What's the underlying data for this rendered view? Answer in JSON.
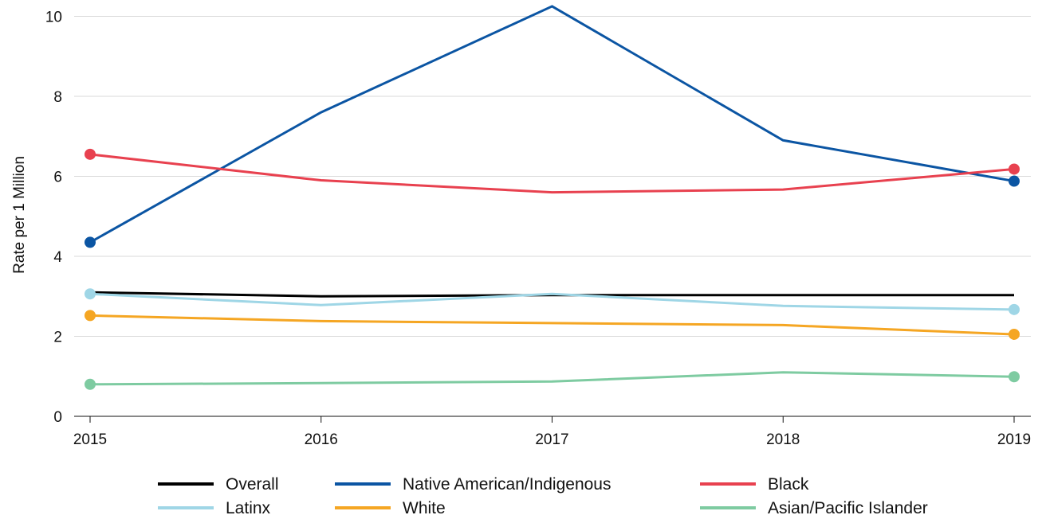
{
  "chart_data": {
    "type": "line",
    "title": "",
    "xlabel": "",
    "ylabel": "Rate per 1 Million",
    "x": [
      "2015",
      "2016",
      "2017",
      "2018",
      "2019"
    ],
    "ylim": [
      0,
      10.2
    ],
    "yticks": [
      "0",
      "2",
      "4",
      "6",
      "8",
      "10"
    ],
    "grid": true,
    "legend_position": "bottom",
    "series": [
      {
        "name": "Overall",
        "color": "#000000",
        "values": [
          3.1,
          3.0,
          3.03,
          3.03,
          3.03
        ],
        "end_markers": false
      },
      {
        "name": "Native American/Indigenous",
        "color": "#0b55a3",
        "values": [
          4.35,
          7.6,
          10.25,
          6.9,
          5.88
        ],
        "end_markers": true
      },
      {
        "name": "Black",
        "color": "#e8414f",
        "values": [
          6.55,
          5.9,
          5.6,
          5.67,
          6.18
        ],
        "end_markers": true
      },
      {
        "name": "Latinx",
        "color": "#9fd6e6",
        "values": [
          3.06,
          2.78,
          3.06,
          2.76,
          2.67
        ],
        "end_markers": true
      },
      {
        "name": "White",
        "color": "#f5a623",
        "values": [
          2.52,
          2.38,
          2.33,
          2.28,
          2.05
        ],
        "end_markers": true
      },
      {
        "name": "Asian/Pacific Islander",
        "color": "#7ecba1",
        "values": [
          0.8,
          0.83,
          0.87,
          1.1,
          0.99
        ],
        "end_markers": true
      }
    ]
  }
}
